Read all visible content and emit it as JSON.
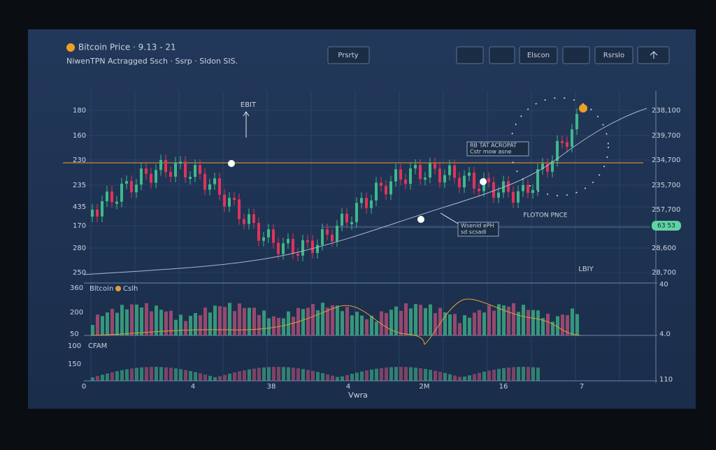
{
  "header": {
    "title": "Bitcoin Price · 9.13 - 21",
    "subtitle": "NiwenTPN   Actragged   Ssch ·  Ssrp ·  Sldon  SIS."
  },
  "toolbar": {
    "center_button": "Prsrty",
    "buttons": [
      "Elscon",
      "Rsrslo"
    ]
  },
  "price_panel": {
    "left_axis": [
      "180",
      "160",
      "230",
      "235",
      "435",
      "170",
      "280",
      "250"
    ],
    "right_axis": [
      "238,100",
      "239,700",
      "234,700",
      "235,700",
      "257,700",
      "28,600",
      "28,700"
    ],
    "badge": "63 53",
    "annotations": {
      "top": "EBIT",
      "box_upper": [
        "RB TAT ACROPAT",
        "Cstr mow asne"
      ],
      "box_lower": [
        "Wsenid ePH",
        "sd scsadi"
      ],
      "price_label": "FLOTON PNCE",
      "bottom_label": "LBIY"
    }
  },
  "volume_panel": {
    "left_axis": [
      "360",
      "200",
      "50"
    ],
    "legend": [
      "Bltcoin",
      "Cslh"
    ],
    "right_axis": [
      "40",
      "4.0"
    ]
  },
  "lower_panel": {
    "left_axis": [
      "100",
      "150"
    ],
    "label": "CFAM",
    "right_axis": [
      "110"
    ]
  },
  "x_axis": {
    "labels": [
      "0",
      "4",
      "38",
      "4",
      "2M",
      "16",
      "7"
    ],
    "title": "Vwra"
  }
}
